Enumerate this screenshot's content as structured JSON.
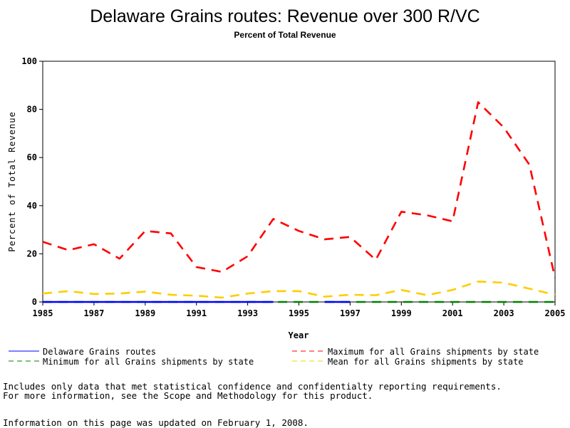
{
  "chart_data": {
    "type": "line",
    "title": "Delaware Grains routes: Revenue over 300 R/VC",
    "subtitle": "Percent of Total Revenue",
    "xlabel": "Year",
    "ylabel": "Percent of Total Revenue",
    "xlim": [
      1985,
      2005
    ],
    "ylim": [
      0,
      100
    ],
    "x_ticks": [
      1985,
      1987,
      1989,
      1991,
      1993,
      1995,
      1997,
      1999,
      2001,
      2003,
      2005
    ],
    "y_ticks": [
      0,
      20,
      40,
      60,
      80,
      100
    ],
    "x": [
      1985,
      1986,
      1987,
      1988,
      1989,
      1990,
      1991,
      1992,
      1993,
      1994,
      1995,
      1996,
      1997,
      1998,
      1999,
      2000,
      2001,
      2002,
      2003,
      2004,
      2005
    ],
    "series": [
      {
        "name": "Delaware Grains routes",
        "color": "#0000ff",
        "dash": "solid",
        "segments": [
          {
            "x": [
              1985,
              1986,
              1987,
              1988,
              1989,
              1990,
              1991,
              1992,
              1993,
              1994
            ],
            "values": [
              0,
              0,
              0,
              0,
              0,
              0,
              0,
              0,
              0,
              0
            ]
          },
          {
            "x": [
              1996,
              1997
            ],
            "values": [
              0,
              0
            ]
          }
        ]
      },
      {
        "name": "Maximum for all Grains shipments by state",
        "color": "#ff0000",
        "dash": "dashed",
        "values": [
          25,
          21.5,
          24,
          18,
          29.5,
          28.5,
          14.5,
          12.5,
          19,
          34.5,
          29.5,
          26,
          27,
          17.5,
          37.5,
          36,
          33.5,
          83,
          72.5,
          57,
          10
        ]
      },
      {
        "name": "Minimum for all Grains shipments by state",
        "color": "#008000",
        "dash": "dashed",
        "values": [
          0,
          0,
          0,
          0,
          0,
          0,
          0,
          0,
          0,
          0,
          0,
          0,
          0,
          0,
          0,
          0,
          0,
          0,
          0,
          0,
          0
        ]
      },
      {
        "name": "Mean for all Grains shipments by state",
        "color": "#ffcc00",
        "dash": "dashed",
        "values": [
          3.5,
          4.5,
          3.3,
          3.5,
          4.3,
          3,
          2.6,
          1.8,
          3.5,
          4.5,
          4.5,
          2.2,
          3,
          2.8,
          5,
          2.8,
          5,
          8.5,
          8,
          5.5,
          3
        ]
      }
    ],
    "legend": [
      {
        "label": "Delaware Grains routes",
        "color": "#0000ff",
        "dash": "solid"
      },
      {
        "label": "Maximum for all Grains shipments by state",
        "color": "#ff0000",
        "dash": "dashed"
      },
      {
        "label": "Minimum for all Grains shipments by state",
        "color": "#008000",
        "dash": "dashed"
      },
      {
        "label": "Mean for all Grains shipments by state",
        "color": "#ffcc00",
        "dash": "dashed"
      }
    ],
    "legend_position": "bottom"
  },
  "notes": {
    "line1": "Includes only data that met statistical confidence and confidentialty reporting requirements.",
    "line2": "For more information, see the Scope and Methodology for this product.",
    "line3": "Information on this page was updated on February 1, 2008."
  }
}
